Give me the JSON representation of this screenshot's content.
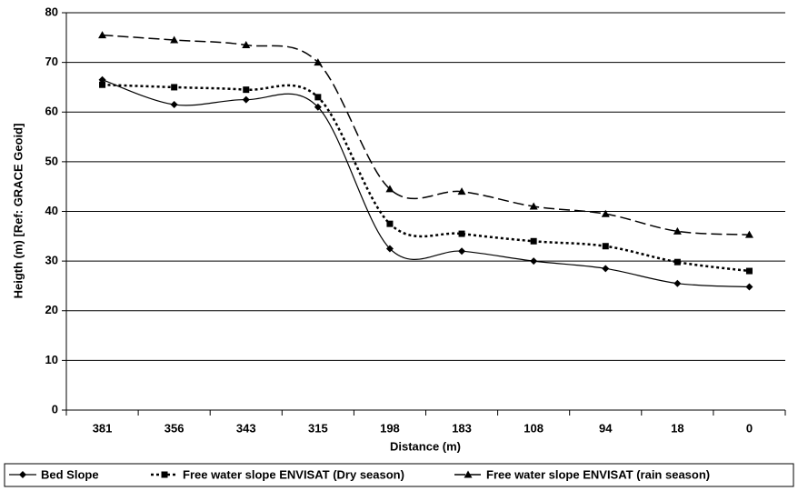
{
  "chart_data": {
    "type": "line",
    "x_label": "Distance (m)",
    "y_label": "Heigth (m) [Ref: GRACE Geoid]",
    "categories": [
      "381",
      "356",
      "343",
      "315",
      "198",
      "183",
      "108",
      "94",
      "18",
      "0"
    ],
    "ylim": [
      0,
      80
    ],
    "yticks": [
      0,
      10,
      20,
      30,
      40,
      50,
      60,
      70,
      80
    ],
    "grid": true,
    "smooth": true,
    "legend": "bottom",
    "series": [
      {
        "name": "Bed Slope",
        "color": "#000000",
        "dash": "solid",
        "marker": "diamond",
        "values": [
          66.5,
          61.5,
          62.5,
          61,
          32.5,
          32,
          30,
          28.5,
          25.5,
          24.8
        ]
      },
      {
        "name": "Free water slope ENVISAT (Dry season)",
        "color": "#000000",
        "dash": "dotted",
        "marker": "square",
        "values": [
          65.5,
          65,
          64.5,
          63,
          37.5,
          35.5,
          34,
          33,
          29.8,
          28
        ]
      },
      {
        "name": "Free water slope ENVISAT (rain season)",
        "color": "#000000",
        "dash": "dashed",
        "marker": "triangle",
        "values": [
          75.5,
          74.5,
          73.5,
          70,
          44.5,
          44,
          41,
          39.5,
          36,
          35.3
        ]
      }
    ]
  }
}
